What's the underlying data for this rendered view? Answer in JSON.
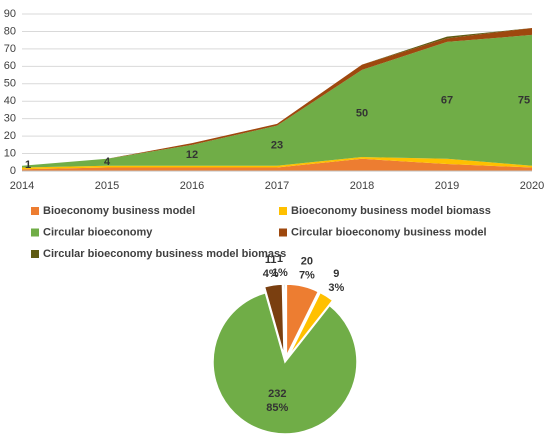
{
  "chart_data": [
    {
      "type": "stacked-area",
      "categories": [
        "2014",
        "2015",
        "2016",
        "2017",
        "2018",
        "2019",
        "2020"
      ],
      "ylim": [
        0,
        90
      ],
      "yticks": [
        0,
        10,
        20,
        30,
        40,
        50,
        60,
        70,
        80,
        90
      ],
      "grid": true,
      "series": [
        {
          "name": "Bioeconomy business model",
          "color": "#ed7d31",
          "values": [
            1,
            2,
            2,
            2,
            7,
            4,
            2
          ]
        },
        {
          "name": "Bioeconomy business model biomass",
          "color": "#ffc000",
          "values": [
            1,
            1,
            1,
            1,
            1,
            3,
            1
          ]
        },
        {
          "name": "Circular bioeconomy",
          "color": "#70ad47",
          "values": [
            1,
            4,
            12,
            23,
            50,
            67,
            75
          ],
          "data_labels": true
        },
        {
          "name": "Circular bioeconomy business model",
          "color": "#9e480e",
          "values": [
            0,
            0,
            1,
            1,
            3,
            2,
            4
          ]
        },
        {
          "name": "Circular bioeconomy business model biomass",
          "color": "#5e5a12",
          "values": [
            0,
            0,
            0,
            0,
            0,
            1,
            0
          ]
        }
      ]
    },
    {
      "type": "pie",
      "categories": [
        "Bioeconomy business model",
        "Bioeconomy business model biomass",
        "Circular bioeconomy",
        "Circular bioeconomy business model",
        "Circular bioeconomy business model biomass"
      ],
      "values": [
        20,
        9,
        232,
        11,
        1
      ],
      "percent_labels": [
        "7%",
        "3%",
        "85%",
        "4%",
        "1%"
      ],
      "colors": [
        "#ed7d31",
        "#ffc000",
        "#70ad47",
        "#7a3f10",
        "#5e5a12"
      ]
    }
  ]
}
